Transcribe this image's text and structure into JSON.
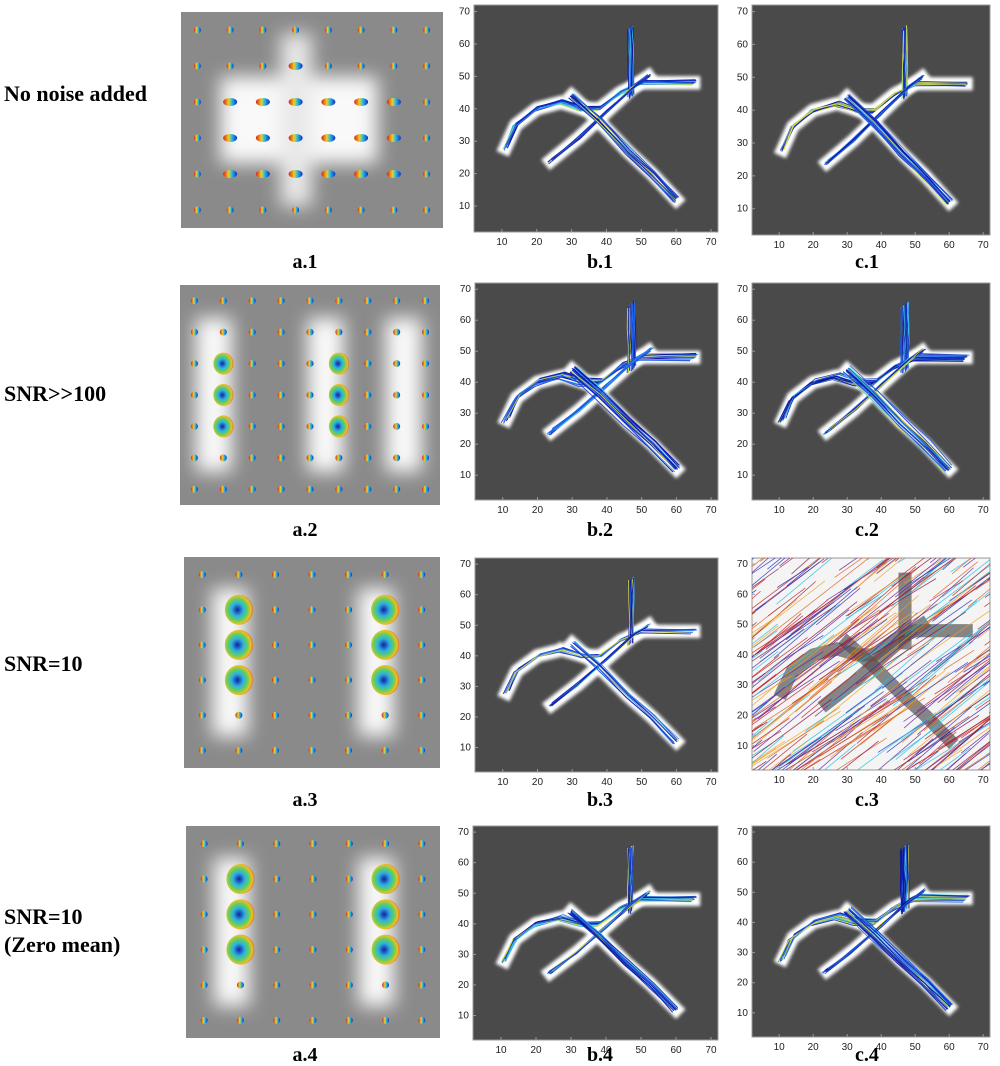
{
  "rows": [
    {
      "label_lines": [
        "No noise added"
      ],
      "panels": [
        "a.1",
        "b.1",
        "c.1"
      ]
    },
    {
      "label_lines": [
        "SNR>>100"
      ],
      "panels": [
        "a.2",
        "b.2",
        "c.2"
      ]
    },
    {
      "label_lines": [
        "SNR=10"
      ],
      "panels": [
        "a.3",
        "b.3",
        "c.3"
      ]
    },
    {
      "label_lines": [
        "SNR=10",
        "(Zero mean)"
      ],
      "panels": [
        "a.4",
        "b.4",
        "c.4"
      ]
    }
  ],
  "axes": {
    "lim": [
      2,
      72
    ],
    "ticks": [
      10,
      20,
      30,
      40,
      50,
      60,
      70
    ]
  }
}
